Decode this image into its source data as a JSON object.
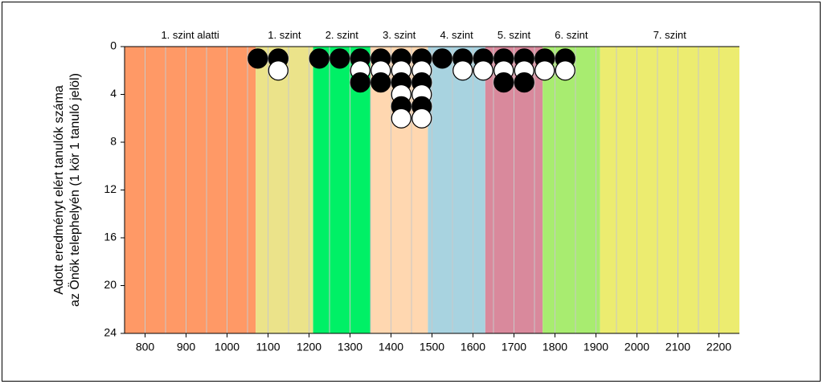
{
  "chart_data": {
    "type": "dot",
    "y_label": [
      "Adott eredményt elért tanulók száma",
      "az Önök telephelyén (1 kör 1 tanuló jelöl)"
    ],
    "xlim": [
      750,
      2250
    ],
    "xticks": [
      800,
      900,
      1000,
      1100,
      1200,
      1300,
      1400,
      1500,
      1600,
      1700,
      1800,
      1900,
      2000,
      2100,
      2200
    ],
    "x_gridlines": [
      800,
      850,
      900,
      950,
      1000,
      1050,
      1100,
      1150,
      1200,
      1250,
      1300,
      1350,
      1400,
      1450,
      1500,
      1550,
      1600,
      1650,
      1700,
      1750,
      1800,
      1850,
      1900,
      1950,
      2000,
      2050,
      2100,
      2150,
      2200
    ],
    "ylim": [
      0,
      24
    ],
    "y_inverted": true,
    "yticks": [
      0,
      4,
      8,
      12,
      16,
      20,
      24
    ],
    "bands": [
      {
        "label": "1. szint alatti",
        "from": 750,
        "to": 1070,
        "color": "#ff9966"
      },
      {
        "label": "1. szint",
        "from": 1070,
        "to": 1210,
        "color": "#ebe38a"
      },
      {
        "label": "2. szint",
        "from": 1210,
        "to": 1350,
        "color": "#00f066"
      },
      {
        "label": "3. szint",
        "from": 1350,
        "to": 1490,
        "color": "#ffd7b0"
      },
      {
        "label": "4. szint",
        "from": 1490,
        "to": 1630,
        "color": "#a8d3e0"
      },
      {
        "label": "5. szint",
        "from": 1630,
        "to": 1770,
        "color": "#d9899c"
      },
      {
        "label": "6. szint",
        "from": 1770,
        "to": 1910,
        "color": "#a8ec70"
      },
      {
        "label": "7. szint",
        "from": 1910,
        "to": 2250,
        "color": "#ecec70"
      }
    ],
    "series": [
      {
        "color": "#000000",
        "x": [
          1075,
          1125,
          1225,
          1275,
          1325,
          1375,
          1425,
          1475,
          1525,
          1575,
          1625,
          1675,
          1725,
          1775,
          1825,
          1325,
          1375,
          1425,
          1475,
          1675,
          1725,
          1425,
          1475
        ],
        "y": [
          1,
          1,
          1,
          1,
          1,
          1,
          1,
          1,
          1,
          1,
          1,
          1,
          1,
          1,
          1,
          3,
          3,
          3,
          3,
          3,
          3,
          5,
          5
        ]
      },
      {
        "color": "#ffffff",
        "x": [
          1125,
          1325,
          1375,
          1425,
          1475,
          1575,
          1625,
          1675,
          1725,
          1775,
          1825,
          1425,
          1475,
          1425,
          1475
        ],
        "y": [
          2,
          2,
          2,
          2,
          2,
          2,
          2,
          2,
          2,
          2,
          2,
          4,
          4,
          6,
          6
        ]
      }
    ]
  }
}
